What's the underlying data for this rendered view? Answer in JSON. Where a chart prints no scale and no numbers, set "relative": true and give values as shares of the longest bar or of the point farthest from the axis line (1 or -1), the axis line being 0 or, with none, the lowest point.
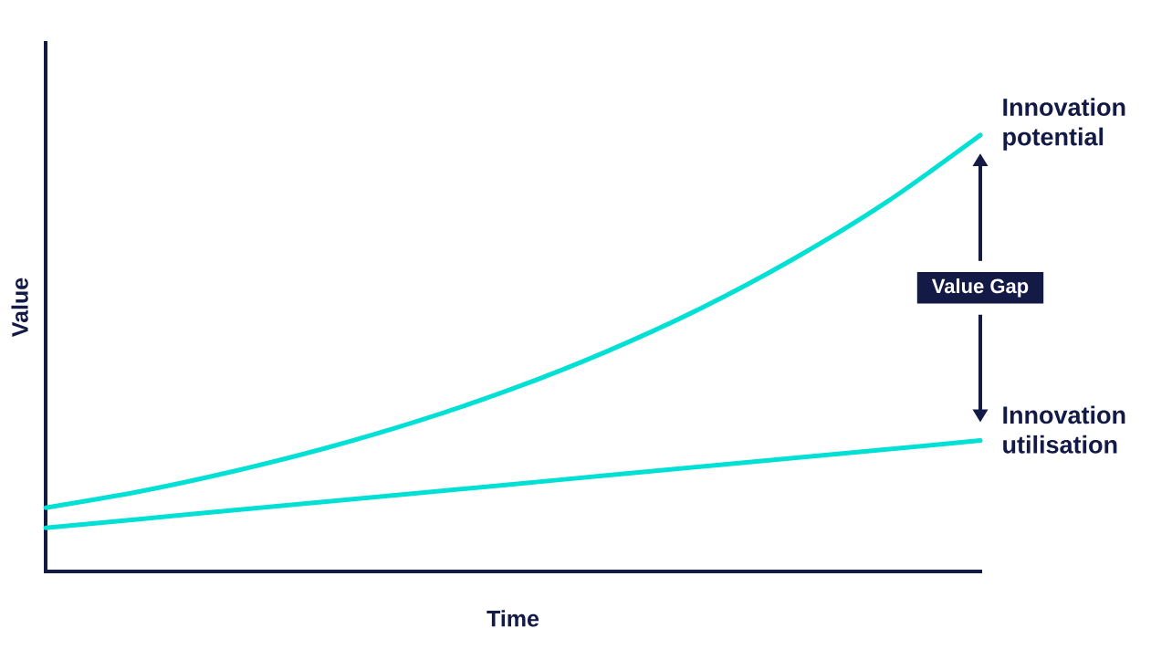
{
  "chart_data": {
    "type": "line",
    "relative": true,
    "xlabel": "Time",
    "ylabel": "Value",
    "categories": [
      null,
      null,
      null,
      null,
      null,
      null,
      null,
      null,
      null,
      null,
      null
    ],
    "series": [
      {
        "name": "Innovation potential",
        "color": "#00e0d4",
        "values": [
          0.146,
          0.183,
          0.229,
          0.283,
          0.346,
          0.419,
          0.504,
          0.602,
          0.716,
          0.847,
          1
        ]
      },
      {
        "name": "Innovation utilisation",
        "color": "#00e0d4",
        "values": [
          0.1,
          0.12,
          0.14,
          0.16,
          0.18,
          0.2,
          0.22,
          0.24,
          0.26,
          0.28,
          0.3
        ]
      }
    ],
    "annotations": [
      "Value Gap"
    ],
    "marker": "none",
    "line_style": "solid"
  }
}
